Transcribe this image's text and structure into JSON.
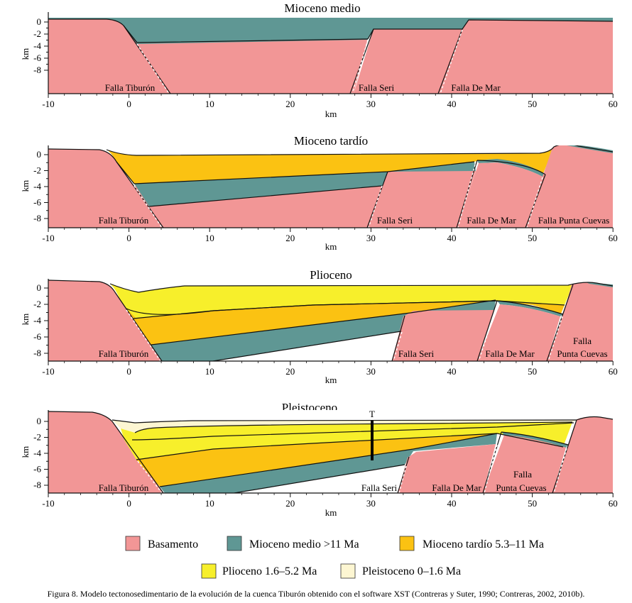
{
  "colors": {
    "basement": "#f29696",
    "mid_miocene": "#5f9794",
    "late_miocene": "#fbc212",
    "pliocene": "#f7ef2b",
    "pleistocene": "#fdf6d2",
    "line": "#111111"
  },
  "axis": {
    "x_unit": "km",
    "y_unit": "km",
    "x_ticks": [
      "-10",
      "0",
      "10",
      "20",
      "30",
      "40",
      "50",
      "60"
    ],
    "y_ticks": [
      "0",
      "-2",
      "-4",
      "-6",
      "-8"
    ]
  },
  "panels": [
    {
      "title": "Mioceno medio",
      "faults": [
        "Falla Tiburón",
        "Falla Seri",
        "Falla De Mar"
      ]
    },
    {
      "title": "Mioceno tardío",
      "faults": [
        "Falla Tiburón",
        "Falla Seri",
        "Falla De Mar",
        "Falla Punta Cuevas"
      ]
    },
    {
      "title": "Plioceno",
      "faults": [
        "Falla Tiburón",
        "Falla Seri",
        "Falla De Mar",
        "Falla",
        "Punta Cuevas"
      ]
    },
    {
      "title": "Pleistoceno",
      "faults": [
        "Falla Tiburón",
        "Falla Seri",
        "Falla De Mar",
        "Falla",
        "Punta Cuevas"
      ],
      "well_label": "T"
    }
  ],
  "legend": {
    "row1": [
      {
        "key": "basement",
        "label": "Basamento"
      },
      {
        "key": "mid_miocene",
        "label": "Mioceno medio >11 Ma"
      },
      {
        "key": "late_miocene",
        "label": "Mioceno tardío 5.3–11 Ma"
      }
    ],
    "row2": [
      {
        "key": "pliocene",
        "label": "Plioceno 1.6–5.2 Ma"
      },
      {
        "key": "pleistocene",
        "label": "Pleistoceno 0–1.6 Ma"
      }
    ]
  },
  "caption": "Figura 8. Modelo tectonosedimentario de la evolución de la cuenca Tiburón obtenido con el software XST (Contreras y Suter, 1990; Contreras, 2002, 2010b)."
}
